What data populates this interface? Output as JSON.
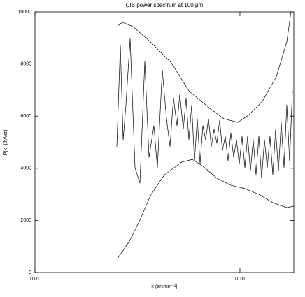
{
  "chart_data": {
    "type": "line",
    "title": "CIB power spectrum at 100 μm",
    "x_label": "k (arcmin⁻¹)",
    "y_label": "P(k) (Jy²/sr)",
    "xscale": "log",
    "xlim": [
      0.01,
      0.1832
    ],
    "ylim": [
      0,
      10000
    ],
    "xticks": [
      0.01,
      {
        "value": 0.1,
        "label": "0.10"
      }
    ],
    "yticks": [
      0,
      2000,
      4000,
      6000,
      8000,
      10000
    ],
    "series": [
      {
        "color": "#000000",
        "x": [
          0.02528,
          0.02671,
          0.03005,
          0.03657,
          0.0463,
          0.05635,
          0.07133,
          0.08347,
          0.09768,
          0.1099,
          0.1286,
          0.1505,
          0.1693,
          0.1775
        ],
        "values": [
          9460,
          9600,
          9440,
          8850,
          8040,
          6970,
          6300,
          5900,
          5760,
          6030,
          6570,
          7510,
          8850,
          10000
        ]
      },
      {
        "color": "#000000",
        "x": [
          0.02528,
          0.02889,
          0.03251,
          0.03657,
          0.0428,
          0.05209,
          0.05861,
          0.06594,
          0.07716,
          0.09029,
          0.1057,
          0.1237,
          0.1447,
          0.1693,
          0.1832
        ],
        "values": [
          540,
          1200,
          2010,
          2950,
          3750,
          4240,
          4340,
          4080,
          3620,
          3350,
          3220,
          3000,
          2680,
          2490,
          2550
        ]
      },
      {
        "color": "#000000",
        "x": [
          0.02508,
          0.02609,
          0.02692,
          0.02778,
          0.02912,
          0.03077,
          0.03251,
          0.03435,
          0.036,
          0.03804,
          0.03956,
          0.0418,
          0.04382,
          0.04558,
          0.0474,
          0.0493,
          0.05088,
          0.05292,
          0.05461,
          0.05635,
          0.05815,
          0.06001,
          0.06193,
          0.0639,
          0.06594,
          0.06805,
          0.07022,
          0.07246,
          0.07477,
          0.07716,
          0.07962,
          0.08217,
          0.08479,
          0.0875,
          0.09029,
          0.09318,
          0.09616,
          0.09923,
          0.1024,
          0.1057,
          0.109,
          0.1125,
          0.1161,
          0.1198,
          0.1237,
          0.1276,
          0.1317,
          0.1359,
          0.1402,
          0.1447,
          0.1493,
          0.1541,
          0.159,
          0.1641,
          0.1693,
          0.1747,
          0.1803
        ],
        "values": [
          4830,
          8710,
          5090,
          6430,
          8980,
          4020,
          3430,
          8100,
          4420,
          5630,
          4020,
          7770,
          5900,
          4830,
          6700,
          5630,
          6840,
          5500,
          6700,
          5090,
          6430,
          4290,
          5900,
          4160,
          5630,
          5090,
          5900,
          4830,
          5500,
          4960,
          5840,
          4690,
          5230,
          4290,
          5360,
          4420,
          5090,
          4160,
          5230,
          4020,
          5230,
          3890,
          5090,
          3750,
          5230,
          3620,
          5090,
          4020,
          5230,
          3750,
          5500,
          3890,
          5760,
          4020,
          6430,
          4290,
          6970
        ]
      }
    ]
  }
}
